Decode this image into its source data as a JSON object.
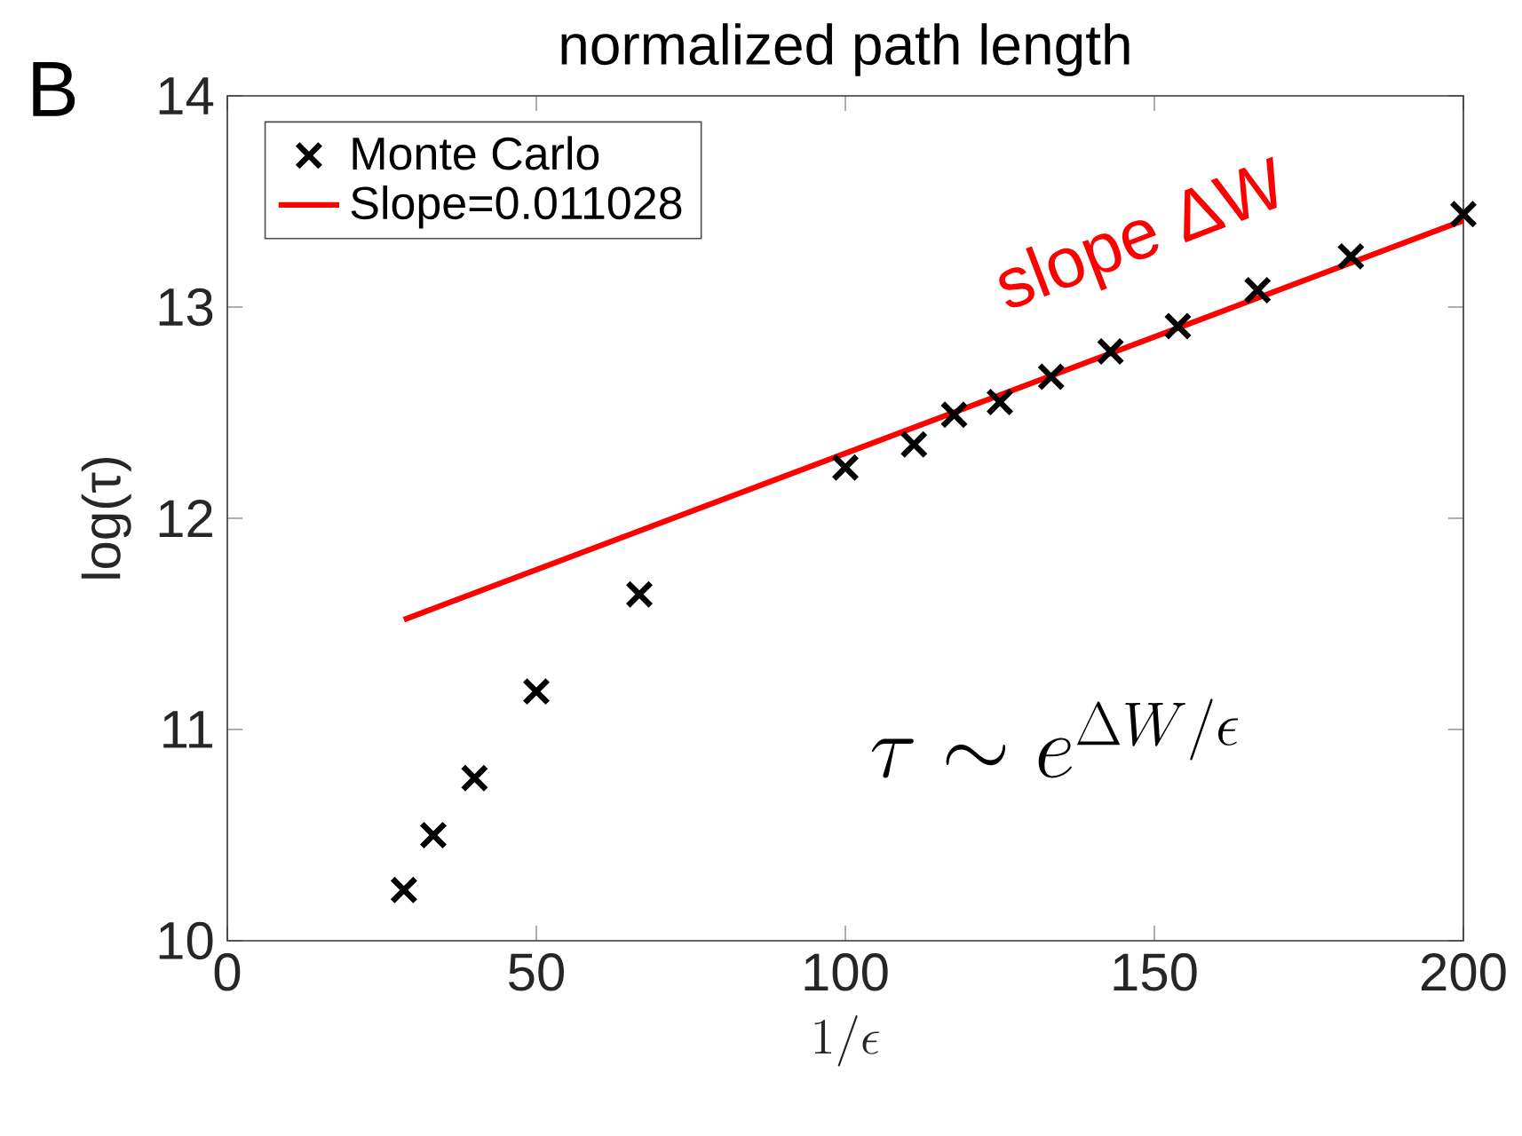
{
  "chart_data": {
    "type": "scatter",
    "title": "normalized path length",
    "xlabel": "1/\\epsilon",
    "ylabel": "log(τ)",
    "annotations": [
      "B",
      "slope ΔW",
      "\\tau \\sim e^{\\Delta W/\\epsilon}"
    ],
    "series": [
      {
        "name": "Monte Carlo",
        "color": "#000000",
        "marker": "cross",
        "x": [
          28.57,
          33.33,
          40,
          50,
          66.67,
          100,
          111.1,
          117.6,
          125,
          133.3,
          142.9,
          153.8,
          166.7,
          181.8,
          200
        ],
        "values": [
          10.24,
          10.5,
          10.77,
          11.18,
          11.64,
          12.24,
          12.35,
          12.49,
          12.55,
          12.67,
          12.79,
          12.91,
          13.08,
          13.24,
          13.44
        ]
      },
      {
        "name": "Slope=0.011028",
        "type": "line",
        "color": "#ff0000",
        "line_style": "solid",
        "x": [
          28.57,
          200
        ],
        "values": [
          11.52,
          13.41
        ]
      }
    ],
    "xlim": [
      0,
      200
    ],
    "ylim": [
      10,
      14
    ],
    "xticks": [
      0,
      50,
      100,
      150,
      200
    ],
    "yticks": [
      10,
      11,
      12,
      13,
      14
    ],
    "legend": "top left"
  }
}
